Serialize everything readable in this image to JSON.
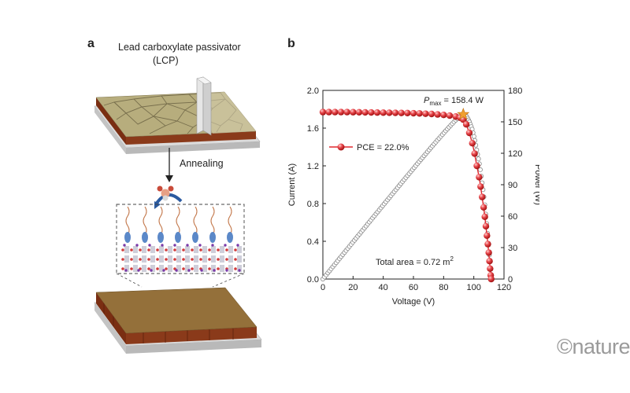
{
  "panel_a": {
    "label": "a",
    "title_line1": "Lead carboxylate passivator",
    "title_line2": "(LCP)",
    "step_label": "Annealing"
  },
  "panel_b": {
    "label": "b"
  },
  "watermark": "©nature",
  "colors": {
    "curve_red": "#e0282e",
    "marker_fill": "#e8474c",
    "line_black": "#222222",
    "power_gray": "#888888",
    "star_orange": "#f0a030",
    "film_top_crystal": "#b7ad7d",
    "film_top_final": "#94703a",
    "film_side": "#8a3a1a",
    "substrate": "#dcdcdc"
  },
  "chart_data": {
    "type": "line",
    "xlabel": "Voltage (V)",
    "ylabel_left": "Current (A)",
    "ylabel_right": "Power (W)",
    "xlim": [
      0,
      120
    ],
    "ylim_left": [
      0,
      2.0
    ],
    "ylim_right": [
      0,
      180
    ],
    "xticks": [
      0,
      20,
      40,
      60,
      80,
      100,
      120
    ],
    "yticks_left": [
      0,
      0.4,
      0.8,
      1.2,
      1.6,
      2.0
    ],
    "yticks_right": [
      0,
      30,
      60,
      90,
      120,
      150,
      180
    ],
    "series": [
      {
        "name": "PCE = 22.0%",
        "axis": "left",
        "marker": "sphere",
        "x": [
          0,
          4,
          8,
          12,
          16,
          20,
          24,
          28,
          32,
          36,
          40,
          44,
          48,
          52,
          56,
          60,
          64,
          68,
          72,
          76,
          80,
          84,
          88,
          91,
          93,
          95,
          97,
          99,
          100.5,
          102,
          103.5,
          104.5,
          105.5,
          106.5,
          107.3,
          108,
          108.7,
          109.3,
          109.9,
          110.4,
          110.8,
          111.2,
          111.5
        ],
        "y": [
          1.77,
          1.77,
          1.77,
          1.77,
          1.77,
          1.769,
          1.768,
          1.767,
          1.766,
          1.765,
          1.764,
          1.763,
          1.762,
          1.761,
          1.76,
          1.758,
          1.756,
          1.753,
          1.75,
          1.745,
          1.74,
          1.733,
          1.723,
          1.71,
          1.69,
          1.64,
          1.55,
          1.44,
          1.33,
          1.2,
          1.08,
          0.98,
          0.87,
          0.76,
          0.66,
          0.56,
          0.46,
          0.37,
          0.28,
          0.19,
          0.11,
          0.04,
          0.0
        ]
      },
      {
        "name": "Power",
        "axis": "right",
        "marker": "open-circle",
        "from_iv": true
      }
    ],
    "annotations": {
      "pmax_symbol": "P",
      "pmax_sub": "max",
      "pmax_value": " = 158.4 W",
      "pmax_x": 93,
      "total_area": "Total area = 0.72 m",
      "total_area_sup": "2"
    },
    "legend_position": "left, upper-middle",
    "grid": false
  }
}
